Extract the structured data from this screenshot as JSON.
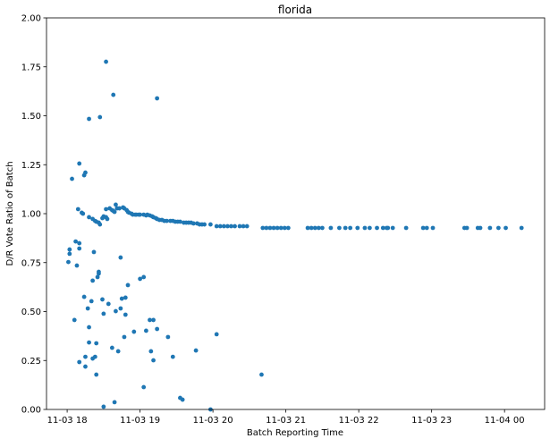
{
  "chart_data": {
    "type": "scatter",
    "title": "florida",
    "xlabel": "Batch Reporting Time",
    "ylabel": "D/R Vote Ratio of Batch",
    "xlim": [
      "11-03 17:43",
      "11-04 00:33"
    ],
    "ylim": [
      0,
      2
    ],
    "grid": false,
    "color": "#1f77b4",
    "xticks": [
      {
        "t": "11-03 18:00",
        "label": "11-03 18"
      },
      {
        "t": "11-03 19:00",
        "label": "11-03 19"
      },
      {
        "t": "11-03 20:00",
        "label": "11-03 20"
      },
      {
        "t": "11-03 21:00",
        "label": "11-03 21"
      },
      {
        "t": "11-03 22:00",
        "label": "11-03 22"
      },
      {
        "t": "11-03 23:00",
        "label": "11-03 23"
      },
      {
        "t": "11-04 00:00",
        "label": "11-04 00"
      }
    ],
    "yticks": [
      {
        "v": 0,
        "label": "0.00"
      },
      {
        "v": 0.25,
        "label": "0.25"
      },
      {
        "v": 0.5,
        "label": "0.50"
      },
      {
        "v": 0.75,
        "label": "0.75"
      },
      {
        "v": 1.0,
        "label": "1.00"
      },
      {
        "v": 1.25,
        "label": "1.25"
      },
      {
        "v": 1.5,
        "label": "1.50"
      },
      {
        "v": 1.75,
        "label": "1.75"
      },
      {
        "v": 2.0,
        "label": "2.00"
      }
    ],
    "points": [
      [
        "11-03 18:02",
        0.817
      ],
      [
        "11-03 18:02",
        0.795
      ],
      [
        "11-03 18:01",
        0.753
      ],
      [
        "11-03 18:08",
        0.735
      ],
      [
        "11-03 18:10",
        0.822
      ],
      [
        "11-03 18:07",
        0.858
      ],
      [
        "11-03 18:10",
        0.849
      ],
      [
        "11-03 18:22",
        0.804
      ],
      [
        "11-03 18:44",
        0.776
      ],
      [
        "11-03 18:26",
        0.703
      ],
      [
        "11-03 18:26",
        0.694
      ],
      [
        "11-03 18:25",
        0.676
      ],
      [
        "11-03 18:21",
        0.658
      ],
      [
        "11-03 19:03",
        0.676
      ],
      [
        "11-03 19:00",
        0.667
      ],
      [
        "11-03 18:50",
        0.635
      ],
      [
        "11-03 18:14",
        0.575
      ],
      [
        "11-03 18:20",
        0.553
      ],
      [
        "11-03 18:29",
        0.562
      ],
      [
        "11-03 18:34",
        0.539
      ],
      [
        "11-03 18:45",
        0.566
      ],
      [
        "11-03 18:48",
        0.571
      ],
      [
        "11-03 18:17",
        0.516
      ],
      [
        "11-03 18:44",
        0.516
      ],
      [
        "11-03 18:40",
        0.502
      ],
      [
        "11-03 18:30",
        0.489
      ],
      [
        "11-03 18:48",
        0.484
      ],
      [
        "11-03 18:06",
        0.457
      ],
      [
        "11-03 18:18",
        0.42
      ],
      [
        "11-03 19:08",
        0.457
      ],
      [
        "11-03 19:11",
        0.457
      ],
      [
        "11-03 18:55",
        0.397
      ],
      [
        "11-03 19:05",
        0.402
      ],
      [
        "11-03 19:14",
        0.411
      ],
      [
        "11-03 18:47",
        0.37
      ],
      [
        "11-03 19:23",
        0.37
      ],
      [
        "11-03 20:03",
        0.384
      ],
      [
        "11-03 18:18",
        0.342
      ],
      [
        "11-03 18:24",
        0.338
      ],
      [
        "11-03 18:37",
        0.315
      ],
      [
        "11-03 18:42",
        0.297
      ],
      [
        "11-03 19:09",
        0.297
      ],
      [
        "11-03 19:46",
        0.301
      ],
      [
        "11-03 18:15",
        0.269
      ],
      [
        "11-03 18:23",
        0.269
      ],
      [
        "11-03 18:21",
        0.26
      ],
      [
        "11-03 19:27",
        0.269
      ],
      [
        "11-03 18:10",
        0.242
      ],
      [
        "11-03 19:11",
        0.251
      ],
      [
        "11-03 18:15",
        0.219
      ],
      [
        "11-03 18:24",
        0.178
      ],
      [
        "11-03 19:03",
        0.114
      ],
      [
        "11-03 19:33",
        0.059
      ],
      [
        "11-03 19:35",
        0.05
      ],
      [
        "11-03 18:30",
        0.014
      ],
      [
        "11-03 18:39",
        0.037
      ],
      [
        "11-03 19:58",
        0.0
      ],
      [
        "11-03 20:40",
        0.178
      ],
      [
        "11-03 18:04",
        1.178
      ],
      [
        "11-03 18:10",
        1.256
      ],
      [
        "11-03 18:14",
        1.196
      ],
      [
        "11-03 18:15",
        1.21
      ],
      [
        "11-03 18:09",
        1.023
      ],
      [
        "11-03 18:12",
        1.005
      ],
      [
        "11-03 18:13",
        1.0
      ],
      [
        "11-03 18:18",
        1.484
      ],
      [
        "11-03 18:27",
        1.493
      ],
      [
        "11-03 18:32",
        1.776
      ],
      [
        "11-03 18:38",
        1.607
      ],
      [
        "11-03 19:14",
        1.589
      ],
      [
        "11-03 18:18",
        0.982
      ],
      [
        "11-03 18:21",
        0.973
      ],
      [
        "11-03 18:23",
        0.963
      ],
      [
        "11-03 18:24",
        0.959
      ],
      [
        "11-03 18:26",
        0.954
      ],
      [
        "11-03 18:27",
        0.945
      ],
      [
        "11-03 18:29",
        0.977
      ],
      [
        "11-03 18:30",
        0.986
      ],
      [
        "11-03 18:32",
        0.982
      ],
      [
        "11-03 18:33",
        0.973
      ],
      [
        "11-03 18:32",
        1.023
      ],
      [
        "11-03 18:35",
        1.027
      ],
      [
        "11-03 18:37",
        1.018
      ],
      [
        "11-03 18:38",
        1.014
      ],
      [
        "11-03 18:39",
        1.009
      ],
      [
        "11-03 18:40",
        1.046
      ],
      [
        "11-03 18:41",
        1.027
      ],
      [
        "11-03 18:43",
        1.027
      ],
      [
        "11-03 18:46",
        1.032
      ],
      [
        "11-03 18:47",
        1.027
      ],
      [
        "11-03 18:49",
        1.018
      ],
      [
        "11-03 18:50",
        1.009
      ],
      [
        "11-03 18:51",
        1.005
      ],
      [
        "11-03 18:53",
        1.0
      ],
      [
        "11-03 18:54",
        0.995
      ],
      [
        "11-03 18:56",
        0.995
      ],
      [
        "11-03 18:57",
        0.995
      ],
      [
        "11-03 18:59",
        0.995
      ],
      [
        "11-03 19:00",
        0.995
      ],
      [
        "11-03 19:03",
        0.995
      ],
      [
        "11-03 19:05",
        0.991
      ],
      [
        "11-03 19:06",
        0.995
      ],
      [
        "11-03 19:08",
        0.991
      ],
      [
        "11-03 19:10",
        0.986
      ],
      [
        "11-03 19:11",
        0.982
      ],
      [
        "11-03 19:13",
        0.977
      ],
      [
        "11-03 19:14",
        0.973
      ],
      [
        "11-03 19:16",
        0.968
      ],
      [
        "11-03 19:18",
        0.968
      ],
      [
        "11-03 19:20",
        0.963
      ],
      [
        "11-03 19:22",
        0.963
      ],
      [
        "11-03 19:25",
        0.963
      ],
      [
        "11-03 19:27",
        0.963
      ],
      [
        "11-03 19:29",
        0.959
      ],
      [
        "11-03 19:31",
        0.959
      ],
      [
        "11-03 19:33",
        0.959
      ],
      [
        "11-03 19:36",
        0.954
      ],
      [
        "11-03 19:38",
        0.954
      ],
      [
        "11-03 19:40",
        0.954
      ],
      [
        "11-03 19:42",
        0.954
      ],
      [
        "11-03 19:44",
        0.95
      ],
      [
        "11-03 19:47",
        0.95
      ],
      [
        "11-03 19:49",
        0.945
      ],
      [
        "11-03 19:51",
        0.945
      ],
      [
        "11-03 19:53",
        0.945
      ],
      [
        "11-03 19:58",
        0.945
      ],
      [
        "11-03 20:03",
        0.936
      ],
      [
        "11-03 20:06",
        0.936
      ],
      [
        "11-03 20:09",
        0.936
      ],
      [
        "11-03 20:12",
        0.936
      ],
      [
        "11-03 20:15",
        0.936
      ],
      [
        "11-03 20:18",
        0.936
      ],
      [
        "11-03 20:22",
        0.936
      ],
      [
        "11-03 20:25",
        0.936
      ],
      [
        "11-03 20:28",
        0.936
      ],
      [
        "11-03 20:41",
        0.927
      ],
      [
        "11-03 20:44",
        0.927
      ],
      [
        "11-03 20:47",
        0.927
      ],
      [
        "11-03 20:50",
        0.927
      ],
      [
        "11-03 20:53",
        0.927
      ],
      [
        "11-03 20:56",
        0.927
      ],
      [
        "11-03 20:59",
        0.927
      ],
      [
        "11-03 21:02",
        0.927
      ],
      [
        "11-03 21:18",
        0.927
      ],
      [
        "11-03 21:21",
        0.927
      ],
      [
        "11-03 21:24",
        0.927
      ],
      [
        "11-03 21:27",
        0.927
      ],
      [
        "11-03 21:30",
        0.927
      ],
      [
        "11-03 21:37",
        0.927
      ],
      [
        "11-03 21:44",
        0.927
      ],
      [
        "11-03 21:49",
        0.927
      ],
      [
        "11-03 21:53",
        0.927
      ],
      [
        "11-03 21:59",
        0.927
      ],
      [
        "11-03 22:05",
        0.927
      ],
      [
        "11-03 22:09",
        0.927
      ],
      [
        "11-03 22:15",
        0.927
      ],
      [
        "11-03 22:20",
        0.927
      ],
      [
        "11-03 22:23",
        0.927
      ],
      [
        "11-03 22:24",
        0.927
      ],
      [
        "11-03 22:28",
        0.927
      ],
      [
        "11-03 22:39",
        0.927
      ],
      [
        "11-03 22:53",
        0.927
      ],
      [
        "11-03 22:56",
        0.927
      ],
      [
        "11-03 23:01",
        0.927
      ],
      [
        "11-03 23:27",
        0.927
      ],
      [
        "11-03 23:29",
        0.927
      ],
      [
        "11-03 23:38",
        0.927
      ],
      [
        "11-03 23:40",
        0.927
      ],
      [
        "11-03 23:48",
        0.927
      ],
      [
        "11-03 23:55",
        0.927
      ],
      [
        "11-04 00:01",
        0.927
      ],
      [
        "11-04 00:14",
        0.927
      ]
    ]
  }
}
